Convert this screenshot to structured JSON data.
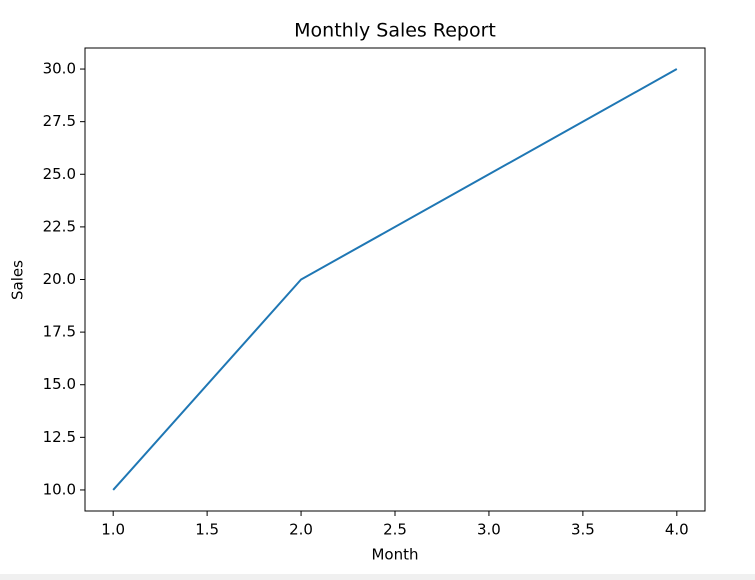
{
  "chart_data": {
    "type": "line",
    "title": "Monthly Sales Report",
    "xlabel": "Month",
    "ylabel": "Sales",
    "x": [
      1,
      2,
      3,
      4
    ],
    "series": [
      {
        "name": "Sales",
        "color": "#1f77b4",
        "values": [
          10,
          20,
          25,
          30
        ]
      }
    ],
    "xlim": [
      0.85,
      4.15
    ],
    "ylim": [
      9,
      31
    ],
    "xticks": [
      {
        "value": 1,
        "label": "1.0"
      },
      {
        "value": 1.5,
        "label": "1.5"
      },
      {
        "value": 2,
        "label": "2.0"
      },
      {
        "value": 2.5,
        "label": "2.5"
      },
      {
        "value": 3,
        "label": "3.0"
      },
      {
        "value": 3.5,
        "label": "3.5"
      },
      {
        "value": 4,
        "label": "4.0"
      }
    ],
    "yticks": [
      {
        "value": 10,
        "label": "10.0"
      },
      {
        "value": 12.5,
        "label": "12.5"
      },
      {
        "value": 15,
        "label": "15.0"
      },
      {
        "value": 17.5,
        "label": "17.5"
      },
      {
        "value": 20,
        "label": "20.0"
      },
      {
        "value": 22.5,
        "label": "22.5"
      },
      {
        "value": 25,
        "label": "25.0"
      },
      {
        "value": 27.5,
        "label": "27.5"
      },
      {
        "value": 30,
        "label": "30.0"
      }
    ],
    "grid": false
  }
}
